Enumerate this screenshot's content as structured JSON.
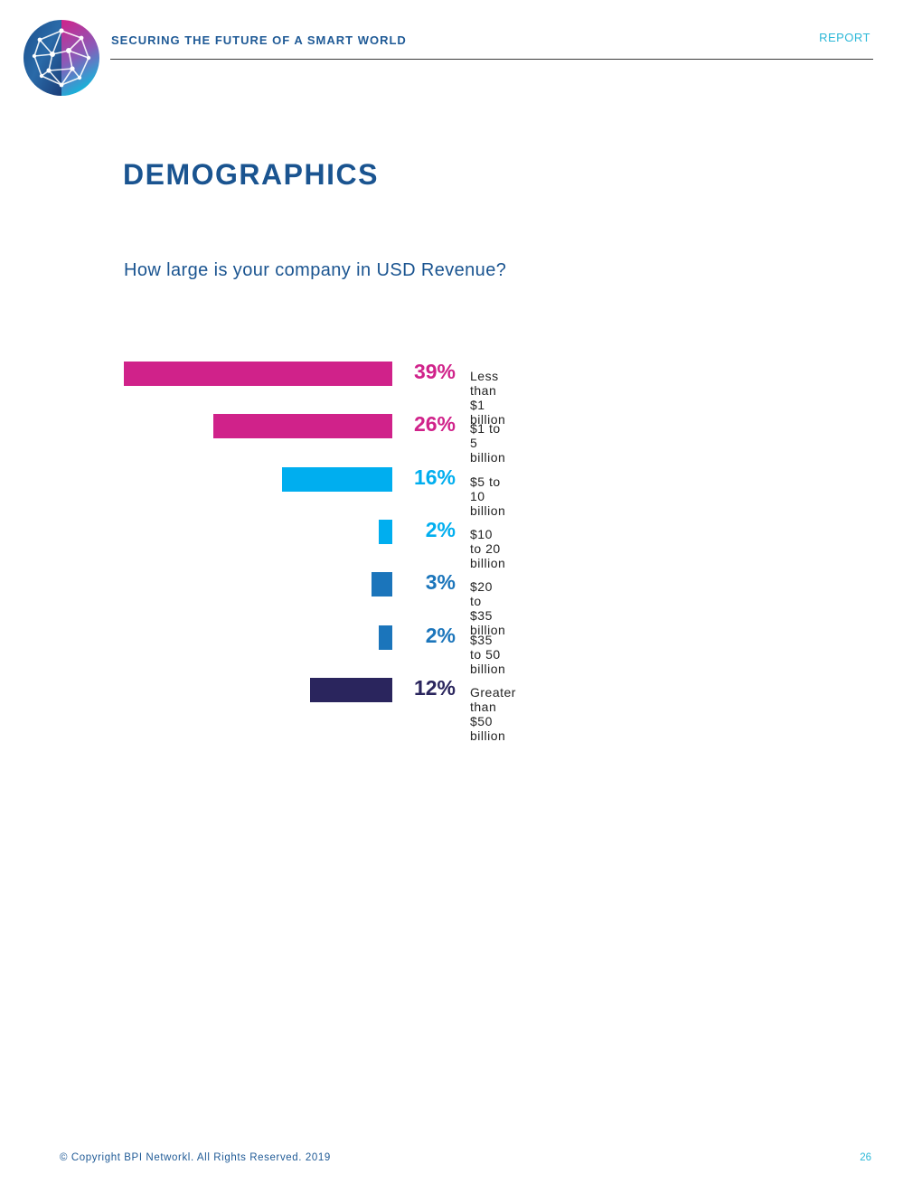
{
  "header": {
    "tagline": "SECURING THE FUTURE OF A SMART WORLD",
    "report_label": "REPORT",
    "logo_icon": "network-globe-icon"
  },
  "page_title": "DEMOGRAPHICS",
  "question": "How large is your company in USD Revenue?",
  "chart_data": {
    "type": "bar",
    "orientation": "horizontal",
    "direction": "right-aligned",
    "title": "How large is your company in USD Revenue?",
    "xlabel": "",
    "ylabel": "",
    "unit": "%",
    "xlim": [
      0,
      39
    ],
    "categories": [
      "Less than $1 billion",
      "$1 to 5 billion",
      "$5 to 10 billion",
      "$10 to 20 billion",
      "$20 to $35 billion",
      "$35 to 50 billion",
      "Greater than $50 billion"
    ],
    "values": [
      39,
      26,
      16,
      2,
      3,
      2,
      12
    ],
    "value_labels": [
      "39%",
      "26%",
      "16%",
      "2%",
      "3%",
      "2%",
      "12%"
    ],
    "colors": [
      "#d0228a",
      "#d0228a",
      "#00aeef",
      "#00aeef",
      "#1b75bb",
      "#1b75bb",
      "#2a255d"
    ]
  },
  "footer": {
    "copyright": "© Copyright BPI Networkl. All Rights Reserved. 2019",
    "page_number": "26"
  }
}
